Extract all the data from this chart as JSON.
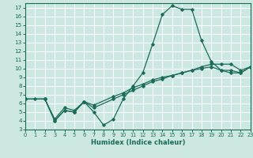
{
  "xlabel": "Humidex (Indice chaleur)",
  "xlim": [
    0,
    23
  ],
  "ylim": [
    3,
    17.5
  ],
  "yticks": [
    3,
    4,
    5,
    6,
    7,
    8,
    9,
    10,
    11,
    12,
    13,
    14,
    15,
    16,
    17
  ],
  "xticks": [
    0,
    1,
    2,
    3,
    4,
    5,
    6,
    7,
    8,
    9,
    10,
    11,
    12,
    13,
    14,
    15,
    16,
    17,
    18,
    19,
    20,
    21,
    22,
    23
  ],
  "bg_color": "#cde8e2",
  "grid_color": "#ffffff",
  "line_color": "#1a6b5a",
  "line1_x": [
    0,
    1,
    2,
    3,
    4,
    5,
    6,
    7,
    8,
    9,
    10,
    11,
    12,
    13,
    14,
    15,
    16,
    17,
    18,
    19,
    20,
    21,
    22,
    23
  ],
  "line1_y": [
    6.5,
    6.5,
    6.5,
    4.0,
    5.2,
    5.0,
    6.2,
    5.0,
    3.5,
    4.2,
    6.5,
    8.0,
    9.5,
    12.8,
    16.2,
    17.2,
    16.8,
    16.8,
    13.2,
    10.8,
    9.8,
    9.8,
    9.5,
    10.2
  ],
  "line2_x": [
    0,
    2,
    3,
    4,
    5,
    6,
    7,
    9,
    10,
    11,
    12,
    13,
    14,
    15,
    16,
    17,
    18,
    19,
    20,
    21,
    22,
    23
  ],
  "line2_y": [
    6.5,
    6.5,
    4.0,
    5.2,
    5.0,
    6.2,
    5.5,
    6.5,
    7.0,
    7.5,
    8.0,
    8.5,
    8.8,
    9.2,
    9.5,
    9.8,
    10.2,
    10.5,
    10.5,
    10.5,
    9.8,
    10.2
  ],
  "line3_x": [
    0,
    2,
    3,
    4,
    5,
    6,
    7,
    9,
    10,
    11,
    12,
    13,
    14,
    15,
    16,
    17,
    18,
    19,
    20,
    21,
    22,
    23
  ],
  "line3_y": [
    6.5,
    6.5,
    4.2,
    5.5,
    5.2,
    6.2,
    5.8,
    6.8,
    7.2,
    7.8,
    8.2,
    8.7,
    9.0,
    9.2,
    9.5,
    9.8,
    10.0,
    10.2,
    9.8,
    9.5,
    9.5,
    10.2
  ]
}
